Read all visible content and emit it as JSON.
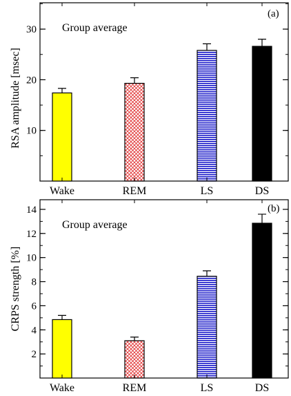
{
  "chart_data": [
    {
      "type": "bar",
      "panel_label": "(a)",
      "annotation": "Group average",
      "categories": [
        "Wake",
        "REM",
        "LS",
        "DS"
      ],
      "values": [
        17.4,
        19.3,
        25.8,
        26.6
      ],
      "errors": [
        0.9,
        1.1,
        1.3,
        1.4
      ],
      "ylabel": "RSA amplitude [msec]",
      "xlabel": "",
      "ylim": [
        0,
        35.2
      ],
      "yticks": [
        10,
        20,
        30
      ],
      "minor_step": 5,
      "bar_styles": [
        "solid-yellow",
        "red-crosshatch",
        "blue-horizontal-stripes",
        "solid-black"
      ],
      "grid": false,
      "legend": "none"
    },
    {
      "type": "bar",
      "panel_label": "(b)",
      "annotation": "Group average",
      "categories": [
        "Wake",
        "REM",
        "LS",
        "DS"
      ],
      "values": [
        4.85,
        3.1,
        8.45,
        12.85
      ],
      "errors": [
        0.35,
        0.3,
        0.45,
        0.75
      ],
      "ylabel": "CRPS strength [%]",
      "xlabel": "",
      "ylim": [
        0,
        14.8
      ],
      "yticks": [
        2,
        4,
        6,
        8,
        10,
        12,
        14
      ],
      "minor_step": 1,
      "bar_styles": [
        "solid-yellow",
        "red-crosshatch",
        "blue-horizontal-stripes",
        "solid-black"
      ],
      "grid": false,
      "legend": "none"
    }
  ],
  "colors": {
    "wake": "#ffff00",
    "rem": "#ff2a2a",
    "ls": "#1414c8",
    "ds": "#000000"
  }
}
